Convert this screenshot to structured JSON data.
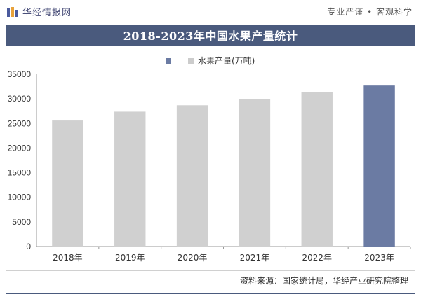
{
  "header": {
    "brand": "华经情报网",
    "slogan": "专业严谨 • 客观科学"
  },
  "chart_data": {
    "type": "bar",
    "title": "2018-2023年中国水果产量统计",
    "legend": "水果产量(万吨)",
    "categories": [
      "2018年",
      "2019年",
      "2020年",
      "2021年",
      "2022年",
      "2023年"
    ],
    "series": [
      {
        "name": "水果产量(万吨)",
        "values": [
          25600,
          27400,
          28700,
          29900,
          31300,
          32700
        ]
      }
    ],
    "highlight_index": 5,
    "ylim": [
      0,
      35000
    ],
    "yticks": [
      0,
      5000,
      10000,
      15000,
      20000,
      25000,
      30000,
      35000
    ],
    "colors": {
      "bar": "#d0d0d0",
      "highlight": "#6b7ba3"
    }
  },
  "footer": {
    "source": "资料来源：国家统计局，华经产业研究院整理"
  }
}
